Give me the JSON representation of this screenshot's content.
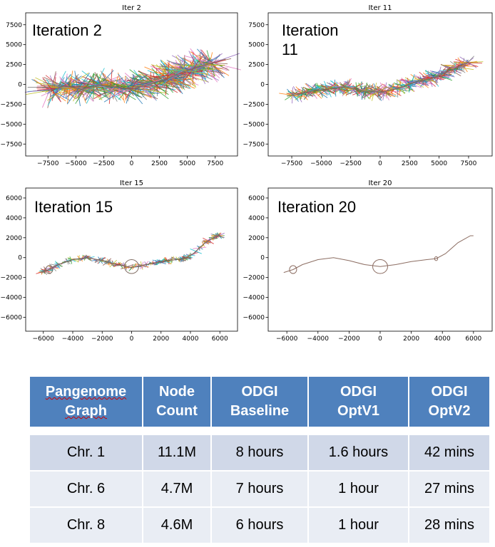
{
  "chart_data": [
    {
      "type": "line",
      "title": "Iter 2",
      "annotation": [
        "Iteration 2"
      ],
      "xlim": [
        -9500,
        9500
      ],
      "ylim": [
        -9000,
        9000
      ],
      "xticks": [
        -7500,
        -5000,
        -2500,
        0,
        2500,
        5000,
        7500
      ],
      "yticks": [
        7500,
        5000,
        2500,
        0,
        -2500,
        -5000,
        -7500
      ],
      "path": [
        [
          -7500,
          -800
        ],
        [
          -6000,
          -200
        ],
        [
          -4500,
          -600
        ],
        [
          -3000,
          -100
        ],
        [
          -1500,
          -300
        ],
        [
          0,
          -600
        ],
        [
          1500,
          0
        ],
        [
          3000,
          600
        ],
        [
          4500,
          1500
        ],
        [
          6000,
          2200
        ],
        [
          7500,
          2800
        ]
      ],
      "spread": 1400
    },
    {
      "type": "line",
      "title": "Iter 11",
      "annotation": [
        "Iteration",
        "11"
      ],
      "xlim": [
        -9500,
        9500
      ],
      "ylim": [
        -9000,
        9000
      ],
      "xticks": [
        -7500,
        -5000,
        -2500,
        0,
        2500,
        5000,
        7500
      ],
      "yticks": [
        7500,
        5000,
        2500,
        0,
        -2500,
        -5000,
        -7500
      ],
      "path": [
        [
          -7500,
          -1400
        ],
        [
          -6000,
          -900
        ],
        [
          -4500,
          -600
        ],
        [
          -3000,
          -300
        ],
        [
          -1500,
          -800
        ],
        [
          0,
          -1000
        ],
        [
          1500,
          -500
        ],
        [
          3000,
          300
        ],
        [
          4500,
          800
        ],
        [
          6000,
          1800
        ],
        [
          7500,
          2800
        ]
      ],
      "spread": 700
    },
    {
      "type": "line",
      "title": "Iter 15",
      "annotation": [
        "Iteration 15"
      ],
      "xlim": [
        -7200,
        7200
      ],
      "ylim": [
        -7400,
        7000
      ],
      "xticks": [
        -6000,
        -4000,
        -2000,
        0,
        2000,
        4000,
        6000
      ],
      "yticks": [
        6000,
        4000,
        2000,
        0,
        -2000,
        -4000,
        -6000
      ],
      "path": [
        [
          -6200,
          -1500
        ],
        [
          -5600,
          -1200
        ],
        [
          -5000,
          -700
        ],
        [
          -4000,
          -200
        ],
        [
          -3000,
          0
        ],
        [
          -2000,
          -300
        ],
        [
          -1000,
          -700
        ],
        [
          0,
          -1000
        ],
        [
          1000,
          -700
        ],
        [
          2000,
          -400
        ],
        [
          3000,
          -200
        ],
        [
          3600,
          -100
        ],
        [
          4200,
          400
        ],
        [
          5000,
          1500
        ],
        [
          5800,
          2200
        ],
        [
          6000,
          2200
        ]
      ],
      "spread": 250
    },
    {
      "type": "line",
      "title": "Iter 20",
      "annotation": [
        "Iteration 20"
      ],
      "xlim": [
        -7200,
        7200
      ],
      "ylim": [
        -7400,
        7000
      ],
      "xticks": [
        -6000,
        -4000,
        -2000,
        0,
        2000,
        4000,
        6000
      ],
      "yticks": [
        6000,
        4000,
        2000,
        0,
        -2000,
        -4000,
        -6000
      ],
      "path": [
        [
          -6200,
          -1500
        ],
        [
          -5600,
          -1200
        ],
        [
          -5000,
          -700
        ],
        [
          -4000,
          -200
        ],
        [
          -3000,
          0
        ],
        [
          -2000,
          -300
        ],
        [
          -1000,
          -700
        ],
        [
          0,
          -900
        ],
        [
          1000,
          -700
        ],
        [
          2000,
          -400
        ],
        [
          3000,
          -200
        ],
        [
          3600,
          -100
        ],
        [
          4200,
          400
        ],
        [
          5000,
          1500
        ],
        [
          5800,
          2200
        ],
        [
          6000,
          2200
        ]
      ],
      "spread": 0
    },
    {
      "type": "table",
      "columns": [
        "Pangenome\nGraph",
        "Node\nCount",
        "ODGI\nBaseline",
        "ODGI\nOptV1",
        "ODGI\nOptV2"
      ],
      "rows": [
        [
          "Chr. 1",
          "11.1M",
          "8 hours",
          "1.6 hours",
          "42 mins"
        ],
        [
          "Chr. 6",
          "4.7M",
          "7 hours",
          "1 hour",
          "27 mins"
        ],
        [
          "Chr. 8",
          "4.6M",
          "6 hours",
          "1 hour",
          "28 mins"
        ]
      ]
    }
  ],
  "colors": {
    "header_bg": "#4f81bd",
    "row_dark": "#d0d8e8",
    "row_light": "#e9edf4",
    "converged_line": "#8c6d62",
    "series": [
      "#1f77b4",
      "#ff7f0e",
      "#2ca02c",
      "#d62728",
      "#9467bd",
      "#8c564b",
      "#e377c2",
      "#7f7f7f",
      "#bcbd22",
      "#17becf"
    ]
  }
}
